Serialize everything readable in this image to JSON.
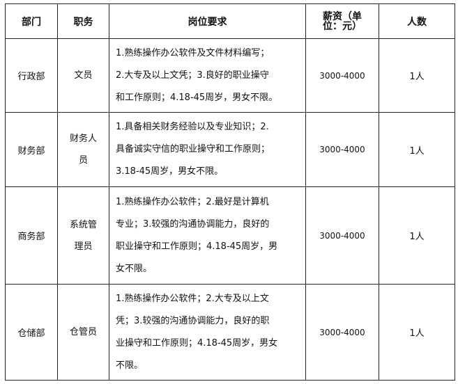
{
  "headers": {
    "dept": "部门",
    "position": "职务",
    "requirements": "岗位要求",
    "salary_line1": "薪资（单",
    "salary_line2": "位：元）",
    "count": "人数"
  },
  "rows": [
    {
      "dept": "行政部",
      "position_lines": [
        "文员"
      ],
      "req_lines": [
        "1.熟练操作办公软件及文件材料编写；",
        "2.大专及以上文凭；3.良好的职业操守",
        "和工作原则；4.18-45周岁，男女不限。"
      ],
      "salary": "3000-4000",
      "count": "1人"
    },
    {
      "dept": "财务部",
      "position_lines": [
        "财务人",
        "员"
      ],
      "req_lines": [
        "1.具备相关财务经验以及专业知识；2.",
        "具备诚实守信的职业操守和工作原则；",
        "3.18-45周岁，男女不限。"
      ],
      "salary": "3000-4000",
      "count": "1人"
    },
    {
      "dept": "商务部",
      "position_lines": [
        "系统管",
        "理员"
      ],
      "req_lines": [
        "1.熟练操作办公软件；2.最好是计算机",
        "专业；3.较强的沟通协调能力，良好的",
        "职业操守和工作原则；4.18-45周岁，男",
        "女不限。"
      ],
      "salary": "3000-4000",
      "count": "1人"
    },
    {
      "dept": "仓储部",
      "position_lines": [
        "仓管员"
      ],
      "req_lines": [
        "1.熟练操作办公软件；2.大专及以上文",
        "凭；3.较强的沟通协调能力，良好的职",
        "业操守和工作原则；4.18-45周岁，男女",
        "不限。"
      ],
      "salary": "3000-4000",
      "count": "1人"
    }
  ]
}
